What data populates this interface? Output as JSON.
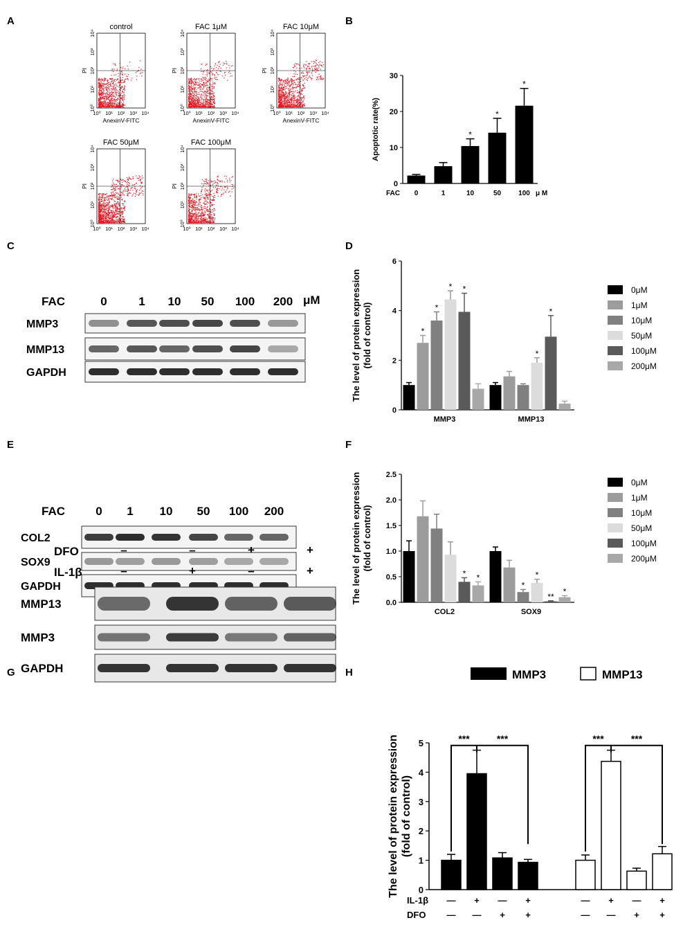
{
  "panels": {
    "A": {
      "label": "A",
      "plots": [
        {
          "title": "control",
          "xlabel": "AnexinV-FITC",
          "ylabel": "PI",
          "ticks": [
            "10⁰",
            "10¹",
            "10²",
            "10³",
            "10⁴"
          ]
        },
        {
          "title": "FAC 1μM",
          "xlabel": "AnexinV-FITC",
          "ylabel": "PI",
          "ticks": [
            "10⁰",
            "10¹",
            "10²",
            "10³",
            "10⁴"
          ]
        },
        {
          "title": "FAC 10μM",
          "xlabel": "AnexinV-FITC",
          "ylabel": "PI",
          "ticks": [
            "10⁰",
            "10¹",
            "10²",
            "10³",
            "10⁴"
          ]
        },
        {
          "title": "FAC 50μM",
          "xlabel": "AnexinV-FITC",
          "ylabel": "PI",
          "ticks": [
            "10⁰",
            "10¹",
            "10²",
            "10³",
            "10⁴"
          ]
        },
        {
          "title": "FAC 100μM",
          "xlabel": "AnexinV-FITC",
          "ylabel": "PI",
          "ticks": [
            "10⁰",
            "10¹",
            "10²",
            "10³",
            "10⁴"
          ]
        }
      ],
      "dot_color": "#e8141e"
    },
    "C": {
      "label": "C",
      "header_label": "FAC",
      "lanes": [
        "0",
        "1",
        "10",
        "50",
        "100",
        "200"
      ],
      "unit": "μM",
      "rows": [
        "MMP3",
        "MMP13",
        "GAPDH"
      ]
    },
    "E": {
      "label": "E",
      "header_label": "FAC",
      "lanes": [
        "0",
        "1",
        "10",
        "50",
        "100",
        "200"
      ],
      "rows": [
        "COL2",
        "SOX9",
        "GAPDH"
      ]
    },
    "G": {
      "label": "G",
      "conditions": [
        {
          "name": "DFO",
          "signs": [
            "–",
            "–",
            "+",
            "+"
          ]
        },
        {
          "name": "IL-1β",
          "signs": [
            "–",
            "+",
            "–",
            "+"
          ]
        }
      ],
      "rows": [
        "MMP13",
        "MMP3",
        "GAPDH"
      ]
    }
  },
  "chart_data": [
    {
      "panel": "B",
      "type": "bar",
      "ylabel": "Apoptotic rate(%)",
      "xlabel_prefix": "FAC",
      "x_unit": "μ M",
      "categories": [
        "0",
        "1",
        "10",
        "50",
        "100"
      ],
      "values": [
        2.2,
        4.8,
        10.4,
        14.1,
        21.6
      ],
      "errors": [
        0.3,
        1.0,
        2.0,
        4.0,
        4.8
      ],
      "significance": [
        "",
        "",
        "*",
        "*",
        "*"
      ],
      "ylim": [
        0,
        30
      ],
      "yticks": [
        "0",
        "10",
        "20",
        "30"
      ],
      "bar_color": "#000000"
    },
    {
      "panel": "D",
      "type": "bar",
      "ylabel": "The level of protein expression\n(fold of control)",
      "categories": [
        "MMP3",
        "MMP13"
      ],
      "series": [
        {
          "name": "0μM",
          "color": "#000000",
          "values": [
            1.0,
            1.0
          ],
          "errors": [
            0.1,
            0.1
          ],
          "sig": [
            "",
            ""
          ]
        },
        {
          "name": "1μM",
          "color": "#9c9c9c",
          "values": [
            2.7,
            1.35
          ],
          "errors": [
            0.3,
            0.2
          ],
          "sig": [
            "*",
            ""
          ]
        },
        {
          "name": "10μM",
          "color": "#808080",
          "values": [
            3.6,
            1.0
          ],
          "errors": [
            0.35,
            0.05
          ],
          "sig": [
            "*",
            ""
          ]
        },
        {
          "name": "50μM",
          "color": "#dcdcdc",
          "values": [
            4.45,
            1.9
          ],
          "errors": [
            0.35,
            0.2
          ],
          "sig": [
            "*",
            "*"
          ]
        },
        {
          "name": "100μM",
          "color": "#5a5a5a",
          "values": [
            3.95,
            2.95
          ],
          "errors": [
            0.75,
            0.85
          ],
          "sig": [
            "*",
            "*"
          ]
        },
        {
          "name": "200μM",
          "color": "#a8a8a8",
          "values": [
            0.85,
            0.25
          ],
          "errors": [
            0.2,
            0.1
          ],
          "sig": [
            "",
            ""
          ]
        }
      ],
      "ylim": [
        0,
        6
      ],
      "yticks": [
        "0",
        "2",
        "4",
        "6"
      ],
      "legend_position": "right"
    },
    {
      "panel": "F",
      "type": "bar",
      "ylabel": "The level of protein expression\n(fold of control)",
      "categories": [
        "COL2",
        "SOX9"
      ],
      "series": [
        {
          "name": "0μM",
          "color": "#000000",
          "values": [
            1.0,
            1.0
          ],
          "errors": [
            0.2,
            0.08
          ],
          "sig": [
            "",
            ""
          ]
        },
        {
          "name": "1μM",
          "color": "#9c9c9c",
          "values": [
            1.68,
            0.68
          ],
          "errors": [
            0.3,
            0.14
          ],
          "sig": [
            "",
            ""
          ]
        },
        {
          "name": "10μM",
          "color": "#808080",
          "values": [
            1.44,
            0.2
          ],
          "errors": [
            0.28,
            0.05
          ],
          "sig": [
            "",
            "*"
          ]
        },
        {
          "name": "50μM",
          "color": "#dcdcdc",
          "values": [
            0.93,
            0.38
          ],
          "errors": [
            0.25,
            0.07
          ],
          "sig": [
            "",
            "*"
          ]
        },
        {
          "name": "100μM",
          "color": "#5a5a5a",
          "values": [
            0.4,
            0.02
          ],
          "errors": [
            0.08,
            0.01
          ],
          "sig": [
            "*",
            "**"
          ]
        },
        {
          "name": "200μM",
          "color": "#a8a8a8",
          "values": [
            0.33,
            0.1
          ],
          "errors": [
            0.07,
            0.03
          ],
          "sig": [
            "*",
            "*"
          ]
        }
      ],
      "ylim": [
        0,
        2.5
      ],
      "yticks": [
        "0.0",
        "0.5",
        "1.0",
        "1.5",
        "2.0",
        "2.5"
      ],
      "legend_position": "right"
    },
    {
      "panel": "H",
      "type": "bar",
      "ylabel": "The level of protein expression\n(fold of control)",
      "groups": [
        {
          "name": "MMP3",
          "fill": "#000000",
          "values": [
            1.0,
            3.95,
            1.08,
            0.93
          ],
          "errors": [
            0.2,
            0.8,
            0.18,
            0.1
          ]
        },
        {
          "name": "MMP13",
          "fill": "#ffffff",
          "values": [
            1.0,
            4.37,
            0.63,
            1.22
          ],
          "errors": [
            0.18,
            0.38,
            0.1,
            0.25
          ]
        }
      ],
      "conditions": [
        {
          "name": "IL-1β",
          "signs": [
            "—",
            "+",
            "—",
            "+"
          ]
        },
        {
          "name": "DFO",
          "signs": [
            "—",
            "—",
            "+",
            "+"
          ]
        }
      ],
      "significance_labels": [
        "***",
        "***",
        "***",
        "***"
      ],
      "ylim": [
        0,
        5
      ],
      "yticks": [
        "0",
        "1",
        "2",
        "3",
        "4",
        "5"
      ],
      "legend_position": "top"
    }
  ]
}
